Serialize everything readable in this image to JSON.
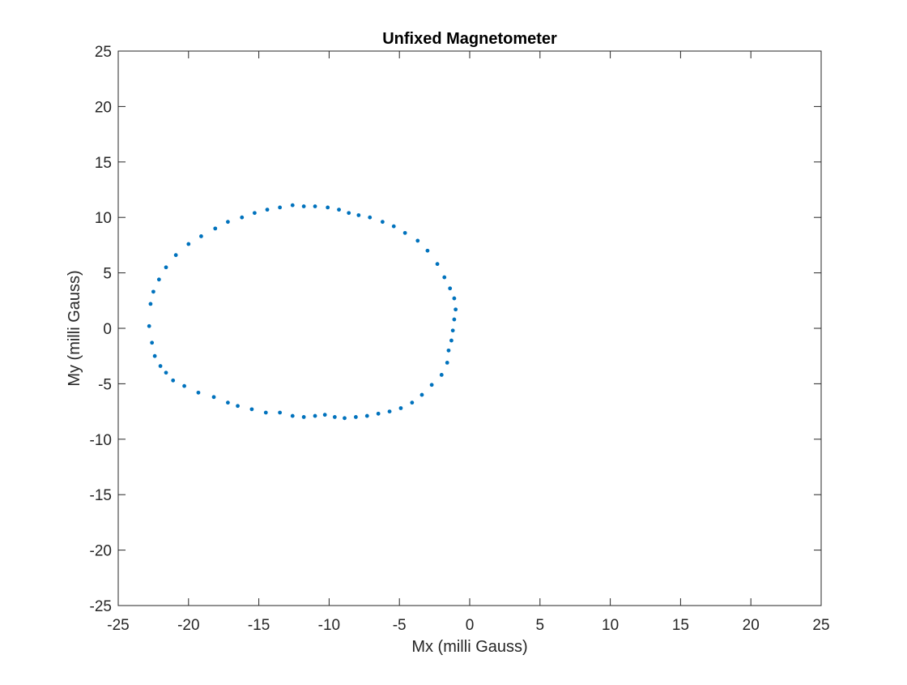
{
  "chart_data": {
    "type": "scatter",
    "title": "Unfixed Magnetometer",
    "xlabel": "Mx (milli Gauss)",
    "ylabel": "My (milli Gauss)",
    "xlim": [
      -25,
      25
    ],
    "ylim": [
      -25,
      25
    ],
    "xticks": [
      -25,
      -20,
      -15,
      -10,
      -5,
      0,
      5,
      10,
      15,
      20,
      25
    ],
    "yticks": [
      -25,
      -20,
      -15,
      -10,
      -5,
      0,
      5,
      10,
      15,
      20,
      25
    ],
    "xtick_labels": [
      "-25",
      "-20",
      "-15",
      "-10",
      "-5",
      "0",
      "5",
      "10",
      "15",
      "20",
      "25"
    ],
    "ytick_labels": [
      "-25",
      "-20",
      "-15",
      "-10",
      "-5",
      "0",
      "5",
      "10",
      "15",
      "20",
      "25"
    ],
    "grid": false,
    "marker_color": "#0072BD",
    "series": [
      {
        "x": [
          -22.7,
          -22.8,
          -22.6,
          -22.4,
          -22.0,
          -21.6,
          -21.1,
          -20.3,
          -19.3,
          -18.2,
          -17.2,
          -16.5,
          -15.5,
          -14.5,
          -13.5,
          -12.6,
          -11.8,
          -11.0,
          -10.3,
          -9.6,
          -8.9,
          -8.1,
          -7.3,
          -6.5,
          -5.7,
          -4.9,
          -4.1,
          -3.4,
          -2.7,
          -2.0,
          -1.6,
          -1.5,
          -1.3,
          -1.2,
          -1.1,
          -1.0,
          -1.1,
          -1.4,
          -1.8,
          -2.3,
          -3.0,
          -3.7,
          -4.6,
          -5.4,
          -6.2,
          -7.1,
          -7.9,
          -8.6,
          -9.3,
          -10.1,
          -11.0,
          -11.8,
          -12.6,
          -13.5,
          -14.4,
          -15.3,
          -16.2,
          -17.2,
          -18.1,
          -19.1,
          -20.0,
          -20.9,
          -21.6,
          -22.1,
          -22.5
        ],
        "y": [
          2.2,
          0.2,
          -1.3,
          -2.5,
          -3.4,
          -4.0,
          -4.7,
          -5.2,
          -5.8,
          -6.2,
          -6.7,
          -7.0,
          -7.3,
          -7.6,
          -7.6,
          -7.9,
          -8.0,
          -7.9,
          -7.8,
          -8.0,
          -8.1,
          -8.0,
          -7.9,
          -7.7,
          -7.5,
          -7.2,
          -6.7,
          -6.0,
          -5.1,
          -4.2,
          -3.1,
          -2.0,
          -1.1,
          -0.2,
          0.8,
          1.7,
          2.7,
          3.6,
          4.6,
          5.8,
          7.0,
          7.9,
          8.6,
          9.2,
          9.6,
          10.0,
          10.2,
          10.4,
          10.7,
          10.9,
          11.0,
          11.0,
          11.1,
          10.9,
          10.7,
          10.4,
          10.0,
          9.6,
          9.0,
          8.3,
          7.6,
          6.6,
          5.5,
          4.4,
          3.3
        ]
      }
    ]
  }
}
